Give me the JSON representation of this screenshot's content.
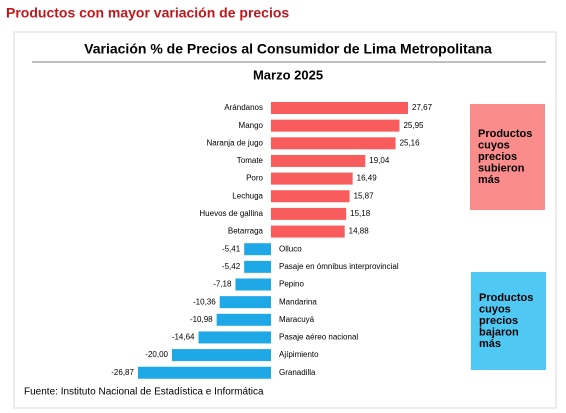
{
  "header": {
    "title": "Productos con mayor variación de precios"
  },
  "chart_data": {
    "type": "bar",
    "orientation": "horizontal",
    "title": "Variación %  de Precios al Consumidor de Lima Metropolitana",
    "subtitle": "Marzo 2025",
    "categories": [
      "Arándanos",
      "Mango",
      "Naranja de jugo",
      "Tomate",
      "Poro",
      "Lechuga",
      "Huevos de gallina",
      "Betarraga",
      "Olluco",
      "Pasaje en ómnibus interprovincial",
      "Pepino",
      "Mandarina",
      "Maracuyá",
      "Pasaje aéreo nacional",
      "Ajípimiento",
      "Granadilla"
    ],
    "values": [
      27.67,
      25.95,
      25.16,
      19.04,
      16.49,
      15.87,
      15.18,
      14.88,
      -5.41,
      -5.42,
      -7.18,
      -10.36,
      -10.98,
      -14.64,
      -20.0,
      -26.87
    ],
    "value_labels": [
      "27,67",
      "25,95",
      "25,16",
      "19,04",
      "16,49",
      "15,87",
      "15,18",
      "14,88",
      "-5,41",
      "-5,42",
      "-7,18",
      "-10,36",
      "-10,98",
      "-14,64",
      "-20,00",
      "-26,87"
    ],
    "positive_color": "#f85c5c",
    "negative_color": "#1fa8e6",
    "annotations": [
      {
        "lines": [
          "Productos",
          "cuyos",
          "precios",
          "subieron",
          "más"
        ],
        "color": "#fa8c8c"
      },
      {
        "lines": [
          "Productos",
          "cuyos",
          "precios",
          "bajaron",
          "más"
        ],
        "color": "#4fc9f4"
      }
    ],
    "source": "Fuente: Instituto Nacional de Estadística e Informática"
  }
}
